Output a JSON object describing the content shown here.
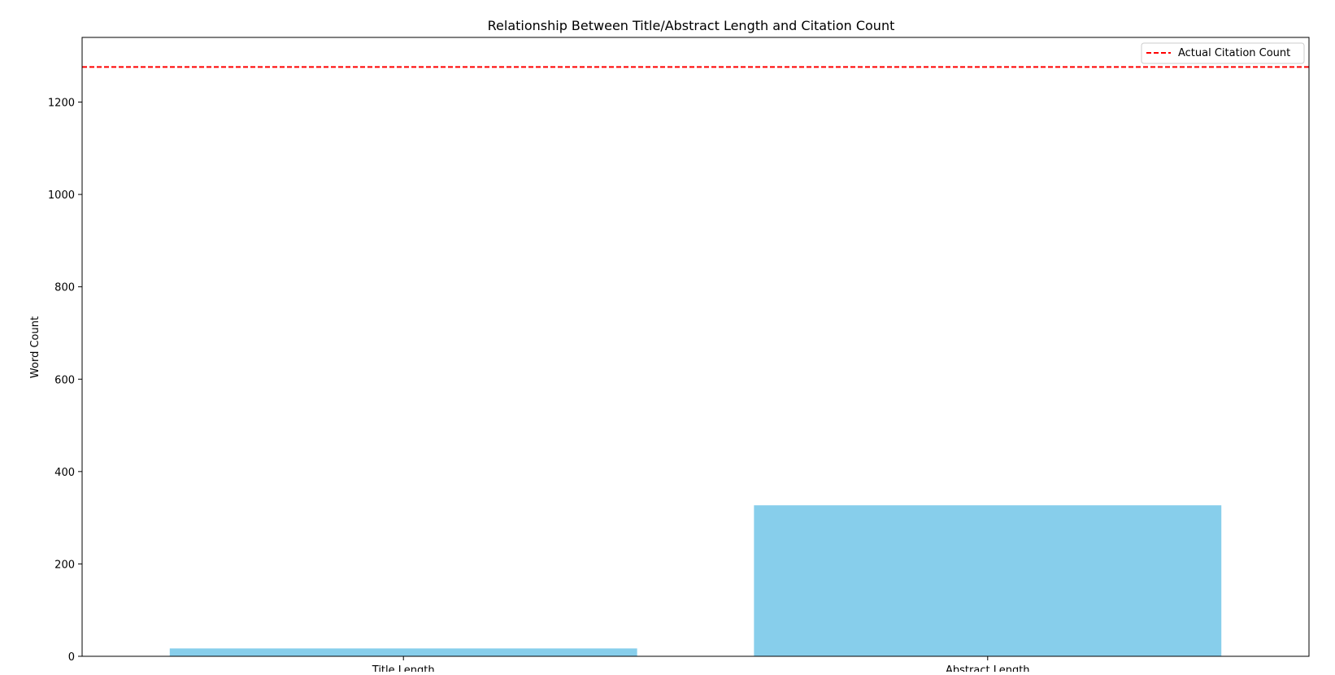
{
  "chart_data": {
    "type": "bar",
    "title": "Relationship Between Title/Abstract Length and Citation Count",
    "xlabel": "",
    "ylabel": "Word Count",
    "categories": [
      "Title Length",
      "Abstract Length"
    ],
    "values": [
      17,
      327
    ],
    "ylim": [
      0,
      1340
    ],
    "yticks": [
      0,
      200,
      400,
      600,
      800,
      1000,
      1200
    ],
    "reference_line": {
      "label": "Actual Citation Count",
      "value": 1276,
      "style": "dashed"
    },
    "legend": {
      "placement": "top-right",
      "entries": [
        "Actual Citation Count"
      ]
    },
    "grid": false,
    "colors": {
      "bar": "#87CEEB",
      "reference_line": "#FF0000",
      "axis": "#000000"
    }
  }
}
